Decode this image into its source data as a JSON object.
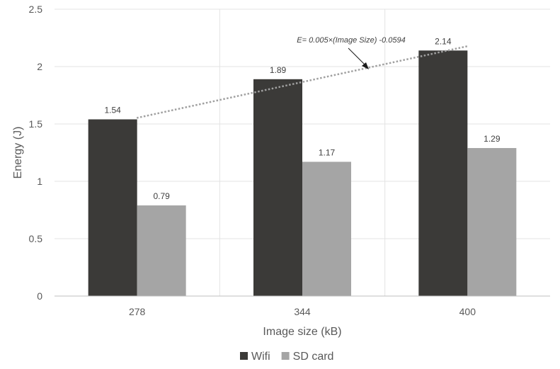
{
  "chart_data": {
    "type": "bar",
    "categories": [
      "278",
      "344",
      "400"
    ],
    "series": [
      {
        "name": "Wifi",
        "values": [
          1.54,
          1.89,
          2.14
        ],
        "color": "#3b3a38"
      },
      {
        "name": "SD card",
        "values": [
          0.79,
          1.17,
          1.29
        ],
        "color": "#a5a5a5"
      }
    ],
    "data_labels": [
      [
        "1.54",
        "1.89",
        "2.14"
      ],
      [
        "0.79",
        "1.17",
        "1.29"
      ]
    ],
    "title": "",
    "xlabel": "Image size (kB)",
    "ylabel": "Energy (J)",
    "ylim": [
      0,
      2.5
    ],
    "yticks": [
      0,
      0.5,
      1,
      1.5,
      2,
      2.5
    ],
    "ytick_labels": [
      "0",
      "0.5",
      "1",
      "1.5",
      "2",
      "2.5"
    ],
    "grid": true,
    "legend_position": "bottom",
    "trendline": {
      "series": "Wifi",
      "style": "dotted",
      "color": "#a0a0a0",
      "equation": "E= 0.005×(Image Size) -0.0594",
      "slope": 0.005,
      "intercept": -0.0594
    }
  }
}
